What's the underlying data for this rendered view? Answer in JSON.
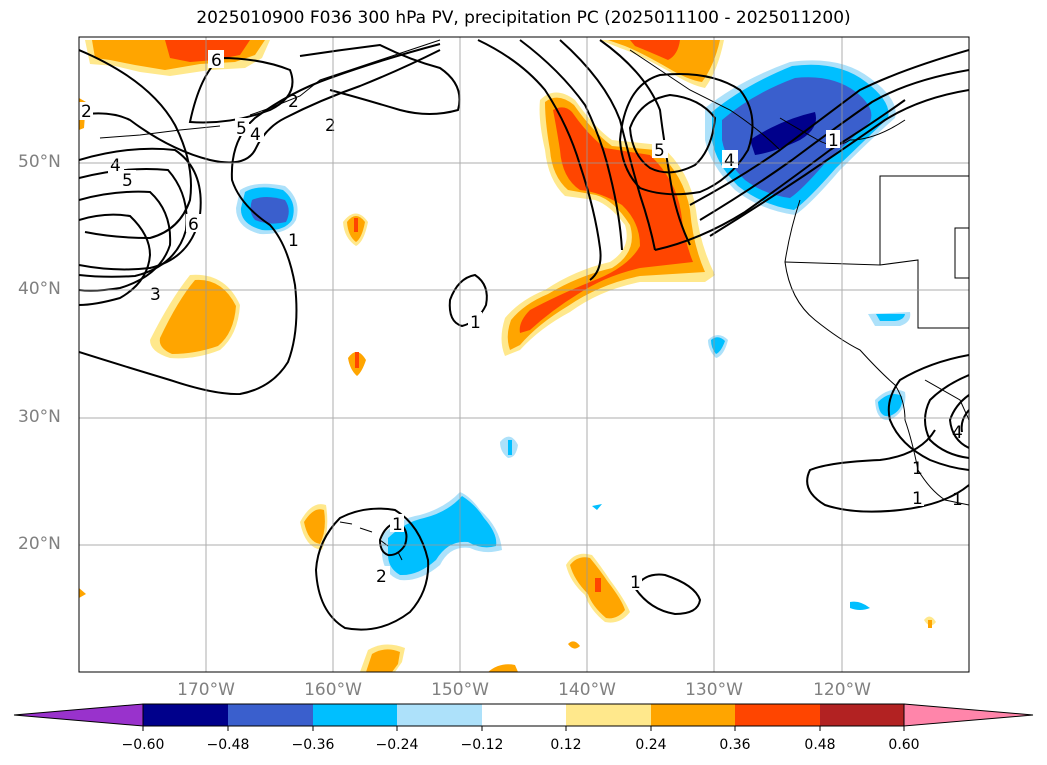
{
  "title": "2025010900 F036 300 hPa PV, precipitation PC (2025011100 - 2025011200)",
  "map": {
    "lon_range": [
      -180,
      -110
    ],
    "lat_range": [
      10,
      60
    ],
    "lat_labels": [
      "50°N",
      "40°N",
      "30°N",
      "20°N"
    ],
    "lon_labels": [
      "170°W",
      "160°W",
      "150°W",
      "140°W",
      "130°W",
      "120°W"
    ],
    "contour_labels": [
      "6",
      "2",
      "2",
      "4",
      "5",
      "5",
      "4",
      "6",
      "3",
      "1",
      "2",
      "1",
      "1",
      "5",
      "4",
      "1",
      "1",
      "1",
      "2",
      "1",
      "1",
      "4"
    ],
    "gridlines": true
  },
  "colorbar": {
    "ticks": [
      "−0.60",
      "−0.48",
      "−0.36",
      "−0.24",
      "−0.12",
      "0.12",
      "0.24",
      "0.36",
      "0.48",
      "0.60"
    ],
    "colors": [
      "#9932CC",
      "#00008B",
      "#3A5FCD",
      "#00BFFF",
      "#ADE1FA",
      "#FFFFFF",
      "#FFE88C",
      "#FFA500",
      "#FF4500",
      "#B22222",
      "#FF85AA"
    ],
    "extend": "both"
  },
  "fills": {
    "negative_colors": [
      "#ADE1FA",
      "#00BFFF",
      "#3A5FCD",
      "#00008B"
    ],
    "positive_colors": [
      "#FFE88C",
      "#FFA500",
      "#FF4500"
    ]
  }
}
